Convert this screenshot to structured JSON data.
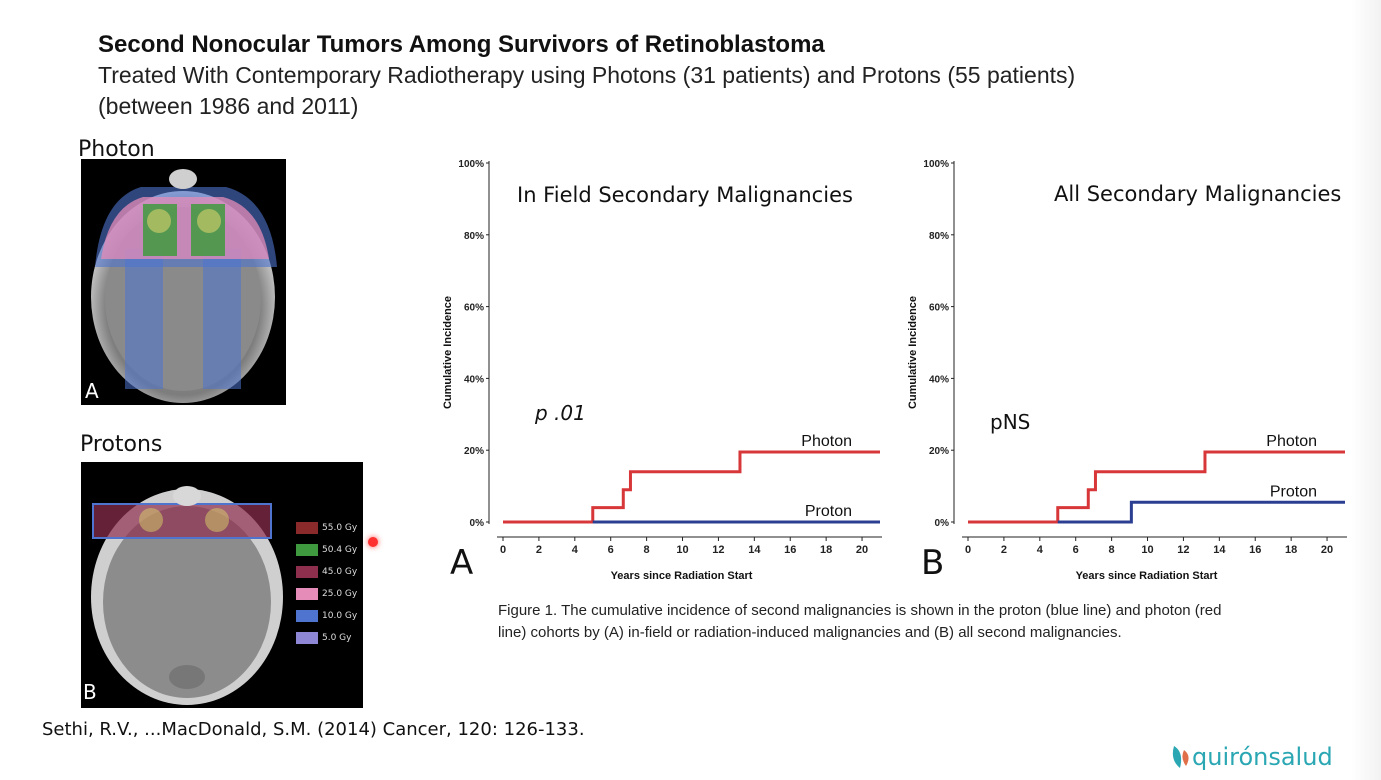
{
  "slide": {
    "title": "Second Nonocular Tumors Among Survivors of Retinoblastoma",
    "subtitle_line1": "Treated With Contemporary Radiotherapy using Photons (31 patients) and Protons (55 patients)",
    "subtitle_line2": "(between 1986 and 2011)",
    "photon_label": "Photon",
    "protons_label": "Protons",
    "scan_a_letter": "A",
    "scan_b_letter": "B",
    "citation": "Sethi, R.V., ...MacDonald, S.M. (2014) Cancer, 120: 126-133.",
    "caption_line1": "Figure 1. The cumulative incidence of second malignancies is shown in the proton (blue line) and photon (red",
    "caption_line2": "line) cohorts by (A) in-field or radiation-induced malignancies and (B) all second malignancies.",
    "logo_text": "quirónsalud"
  },
  "dose_legend": [
    {
      "label": "55.0 Gy",
      "color": "#8b2a2a"
    },
    {
      "label": "50.4 Gy",
      "color": "#3f9a3f"
    },
    {
      "label": "45.0 Gy",
      "color": "#8e2f4e"
    },
    {
      "label": "25.0 Gy",
      "color": "#e58cb8"
    },
    {
      "label": "10.0 Gy",
      "color": "#4f74d0"
    },
    {
      "label": "5.0 Gy",
      "color": "#8d87d6"
    }
  ],
  "chart_data": [
    {
      "type": "line",
      "panel": "A",
      "title": "In Field Secondary Malignancies",
      "annotation": "p .01",
      "xlabel": "Years since Radiation Start",
      "ylabel": "Cumulative Incidence",
      "xlim": [
        0,
        21
      ],
      "ylim": [
        0,
        100
      ],
      "xticks": [
        "0",
        "2",
        "4",
        "6",
        "8",
        "10",
        "12",
        "14",
        "16",
        "18",
        "20"
      ],
      "yticks": [
        "0%",
        "20%",
        "40%",
        "60%",
        "80%",
        "100%"
      ],
      "grid": false,
      "series": [
        {
          "name": "Photon",
          "color": "#d8373a",
          "step": true,
          "x": [
            0,
            5,
            6.7,
            7.1,
            13.2,
            21
          ],
          "y": [
            0,
            4,
            9,
            14,
            19.5,
            19.5
          ]
        },
        {
          "name": "Proton",
          "color": "#2b3f92",
          "step": true,
          "x": [
            5,
            21
          ],
          "y": [
            0,
            0
          ]
        }
      ]
    },
    {
      "type": "line",
      "panel": "B",
      "title": "All Secondary Malignancies",
      "annotation": "pNS",
      "xlabel": "Years since Radiation Start",
      "ylabel": "Cumulative Incidence",
      "xlim": [
        0,
        21
      ],
      "ylim": [
        0,
        100
      ],
      "xticks": [
        "0",
        "2",
        "4",
        "6",
        "8",
        "10",
        "12",
        "14",
        "16",
        "18",
        "20"
      ],
      "yticks": [
        "0%",
        "20%",
        "40%",
        "60%",
        "80%",
        "100%"
      ],
      "grid": false,
      "series": [
        {
          "name": "Photon",
          "color": "#d8373a",
          "step": true,
          "x": [
            0,
            5,
            6.7,
            7.1,
            13.2,
            21
          ],
          "y": [
            0,
            4,
            9,
            14,
            19.5,
            19.5
          ]
        },
        {
          "name": "Proton",
          "color": "#2b3f92",
          "step": true,
          "x": [
            5,
            9.1,
            21
          ],
          "y": [
            0,
            5.5,
            5.5
          ]
        }
      ]
    }
  ]
}
